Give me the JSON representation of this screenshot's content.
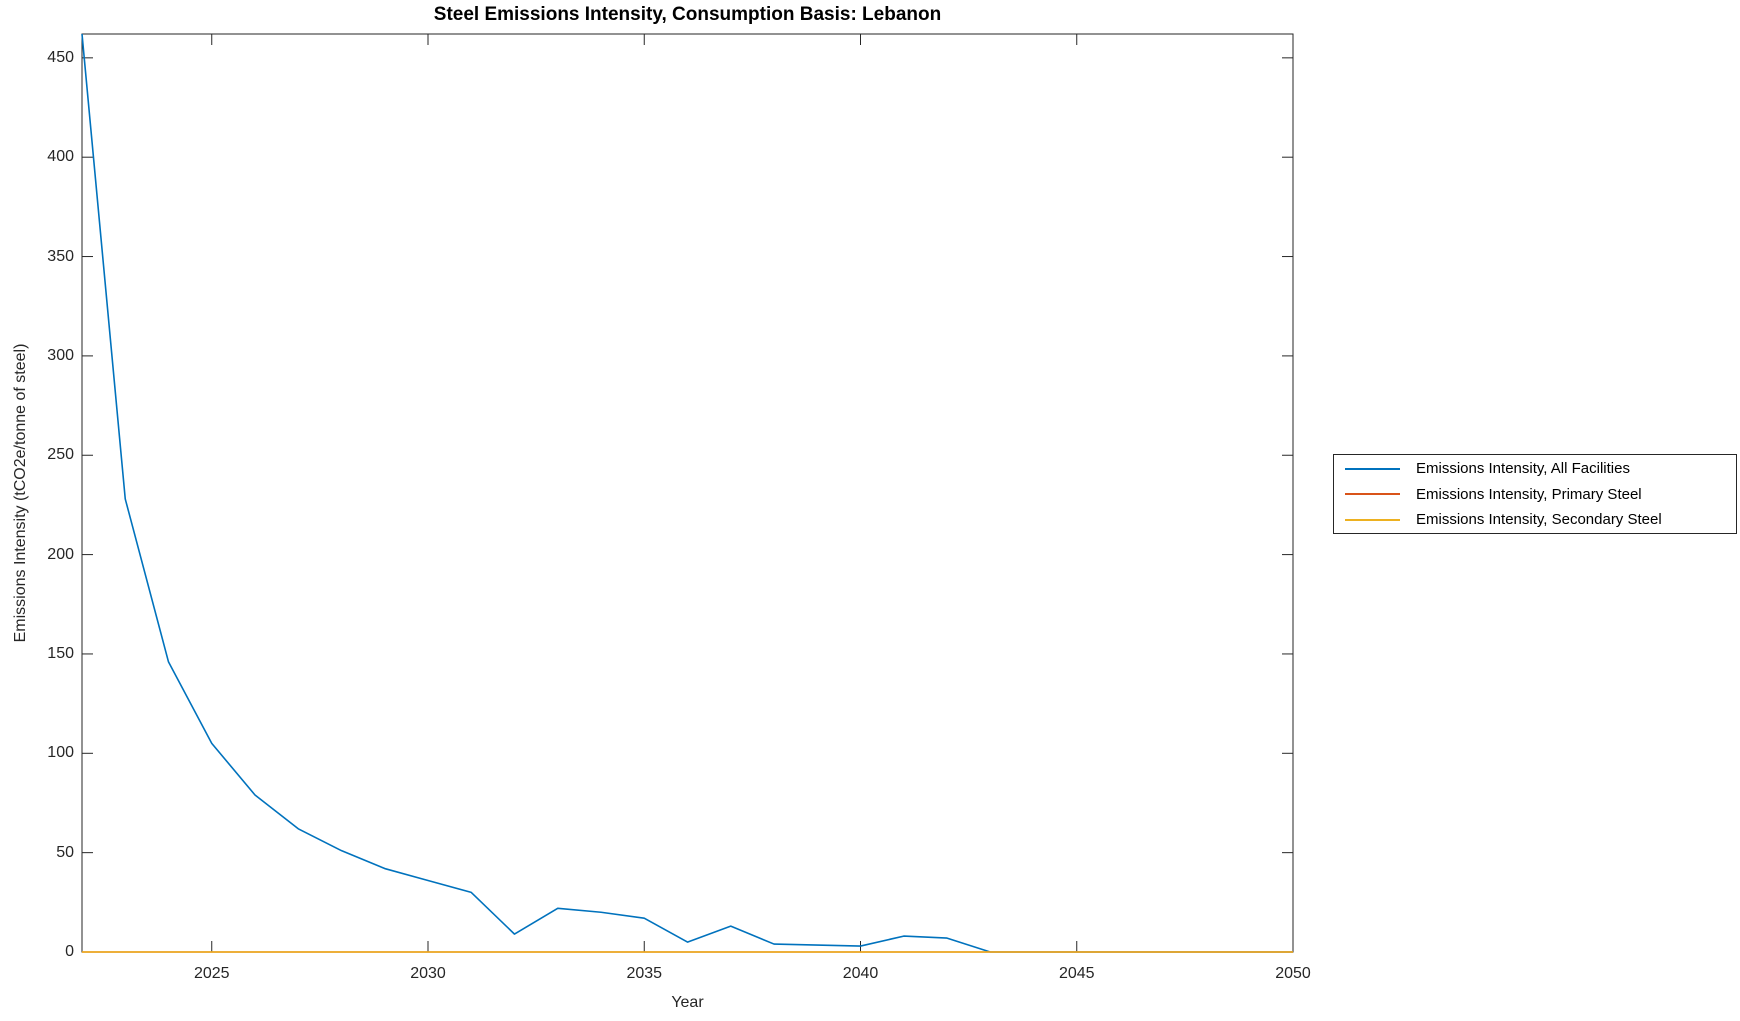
{
  "chart_data": {
    "type": "line",
    "title": "Steel Emissions Intensity, Consumption Basis: Lebanon",
    "xlabel": "Year",
    "ylabel": "Emissions Intensity (tCO2e/tonne of steel)",
    "xlim": [
      2022,
      2050
    ],
    "ylim": [
      0,
      462
    ],
    "xticks": [
      2025,
      2030,
      2035,
      2040,
      2045,
      2050
    ],
    "yticks": [
      0,
      50,
      100,
      150,
      200,
      250,
      300,
      350,
      400,
      450
    ],
    "grid": false,
    "legend_position": "outside-right",
    "x": [
      2022,
      2023,
      2024,
      2025,
      2026,
      2027,
      2028,
      2029,
      2030,
      2031,
      2032,
      2033,
      2034,
      2035,
      2036,
      2037,
      2038,
      2039,
      2040,
      2041,
      2042,
      2043,
      2044,
      2045,
      2046,
      2047,
      2048,
      2049,
      2050
    ],
    "series": [
      {
        "name": "Emissions Intensity, All Facilities",
        "color": "#0072BD",
        "values": [
          462,
          228,
          146,
          105,
          79,
          62,
          51,
          42,
          36,
          30,
          9,
          22,
          20,
          17,
          5,
          13,
          4,
          3.5,
          3,
          8,
          7,
          0,
          0,
          0,
          0,
          0,
          0,
          0,
          0
        ]
      },
      {
        "name": "Emissions Intensity, Primary Steel",
        "color": "#D95319",
        "values": [
          0,
          0,
          0,
          0,
          0,
          0,
          0,
          0,
          0,
          0,
          0,
          0,
          0,
          0,
          0,
          0,
          0,
          0,
          0,
          0,
          0,
          0,
          0,
          0,
          0,
          0,
          0,
          0,
          0
        ]
      },
      {
        "name": "Emissions Intensity, Secondary Steel",
        "color": "#EDB120",
        "values": [
          0,
          0,
          0,
          0,
          0,
          0,
          0,
          0,
          0,
          0,
          0,
          0,
          0,
          0,
          0,
          0,
          0,
          0,
          0,
          0,
          0,
          0,
          0,
          0,
          0,
          0,
          0,
          0,
          0
        ]
      }
    ]
  },
  "colors": {
    "axis": "#262626",
    "title": "#000000",
    "background": "#ffffff"
  }
}
